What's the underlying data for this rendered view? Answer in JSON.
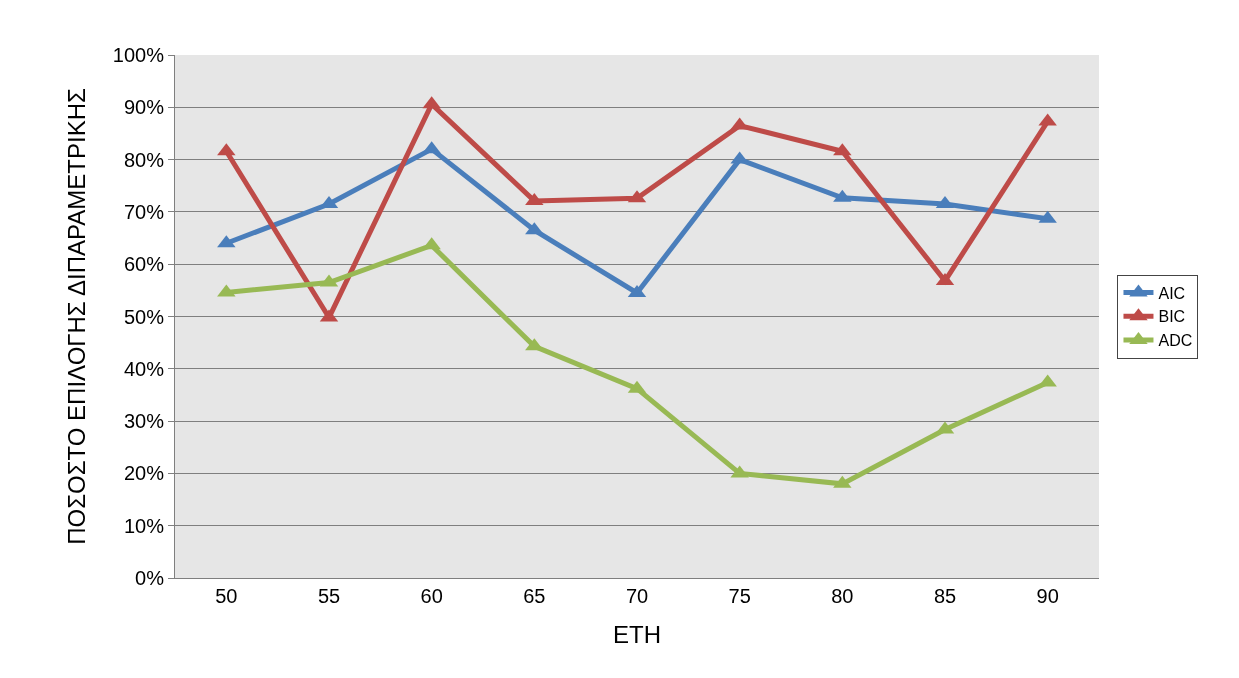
{
  "chart_data": {
    "type": "line",
    "xlabel": "ΕΤΗ",
    "ylabel": "ΠΟΣΟΣΤΟ ΕΠΙΛΟΓΗΣ ΔΙΠΑΡΑΜΕΤΡΙΚΗΣ",
    "categories": [
      "50",
      "55",
      "60",
      "65",
      "70",
      "75",
      "80",
      "85",
      "90"
    ],
    "series": [
      {
        "name": "AIC",
        "color": "#4a7ebb",
        "values": [
          64,
          71.5,
          82,
          66.5,
          54.5,
          80,
          72.7,
          71.5,
          68.7
        ]
      },
      {
        "name": "BIC",
        "color": "#be4b48",
        "values": [
          81.6,
          49.8,
          90.6,
          72.1,
          72.6,
          86.5,
          81.6,
          56.8,
          87.3
        ]
      },
      {
        "name": "ADC",
        "color": "#98b954",
        "values": [
          54.6,
          56.5,
          63.6,
          44.3,
          36.2,
          20,
          18,
          28.4,
          37.4
        ]
      }
    ],
    "ylim": [
      0,
      100
    ],
    "yticks": [
      {
        "value": 0,
        "label": "0%"
      },
      {
        "value": 10,
        "label": "10%"
      },
      {
        "value": 20,
        "label": "20%"
      },
      {
        "value": 30,
        "label": "30%"
      },
      {
        "value": 40,
        "label": "40%"
      },
      {
        "value": 50,
        "label": "50%"
      },
      {
        "value": 60,
        "label": "60%"
      },
      {
        "value": 70,
        "label": "70%"
      },
      {
        "value": 80,
        "label": "80%"
      },
      {
        "value": 90,
        "label": "90%"
      },
      {
        "value": 100,
        "label": "100%"
      }
    ],
    "grid": "y",
    "legend": "right",
    "marker": "triangle",
    "line_style": "solid"
  }
}
